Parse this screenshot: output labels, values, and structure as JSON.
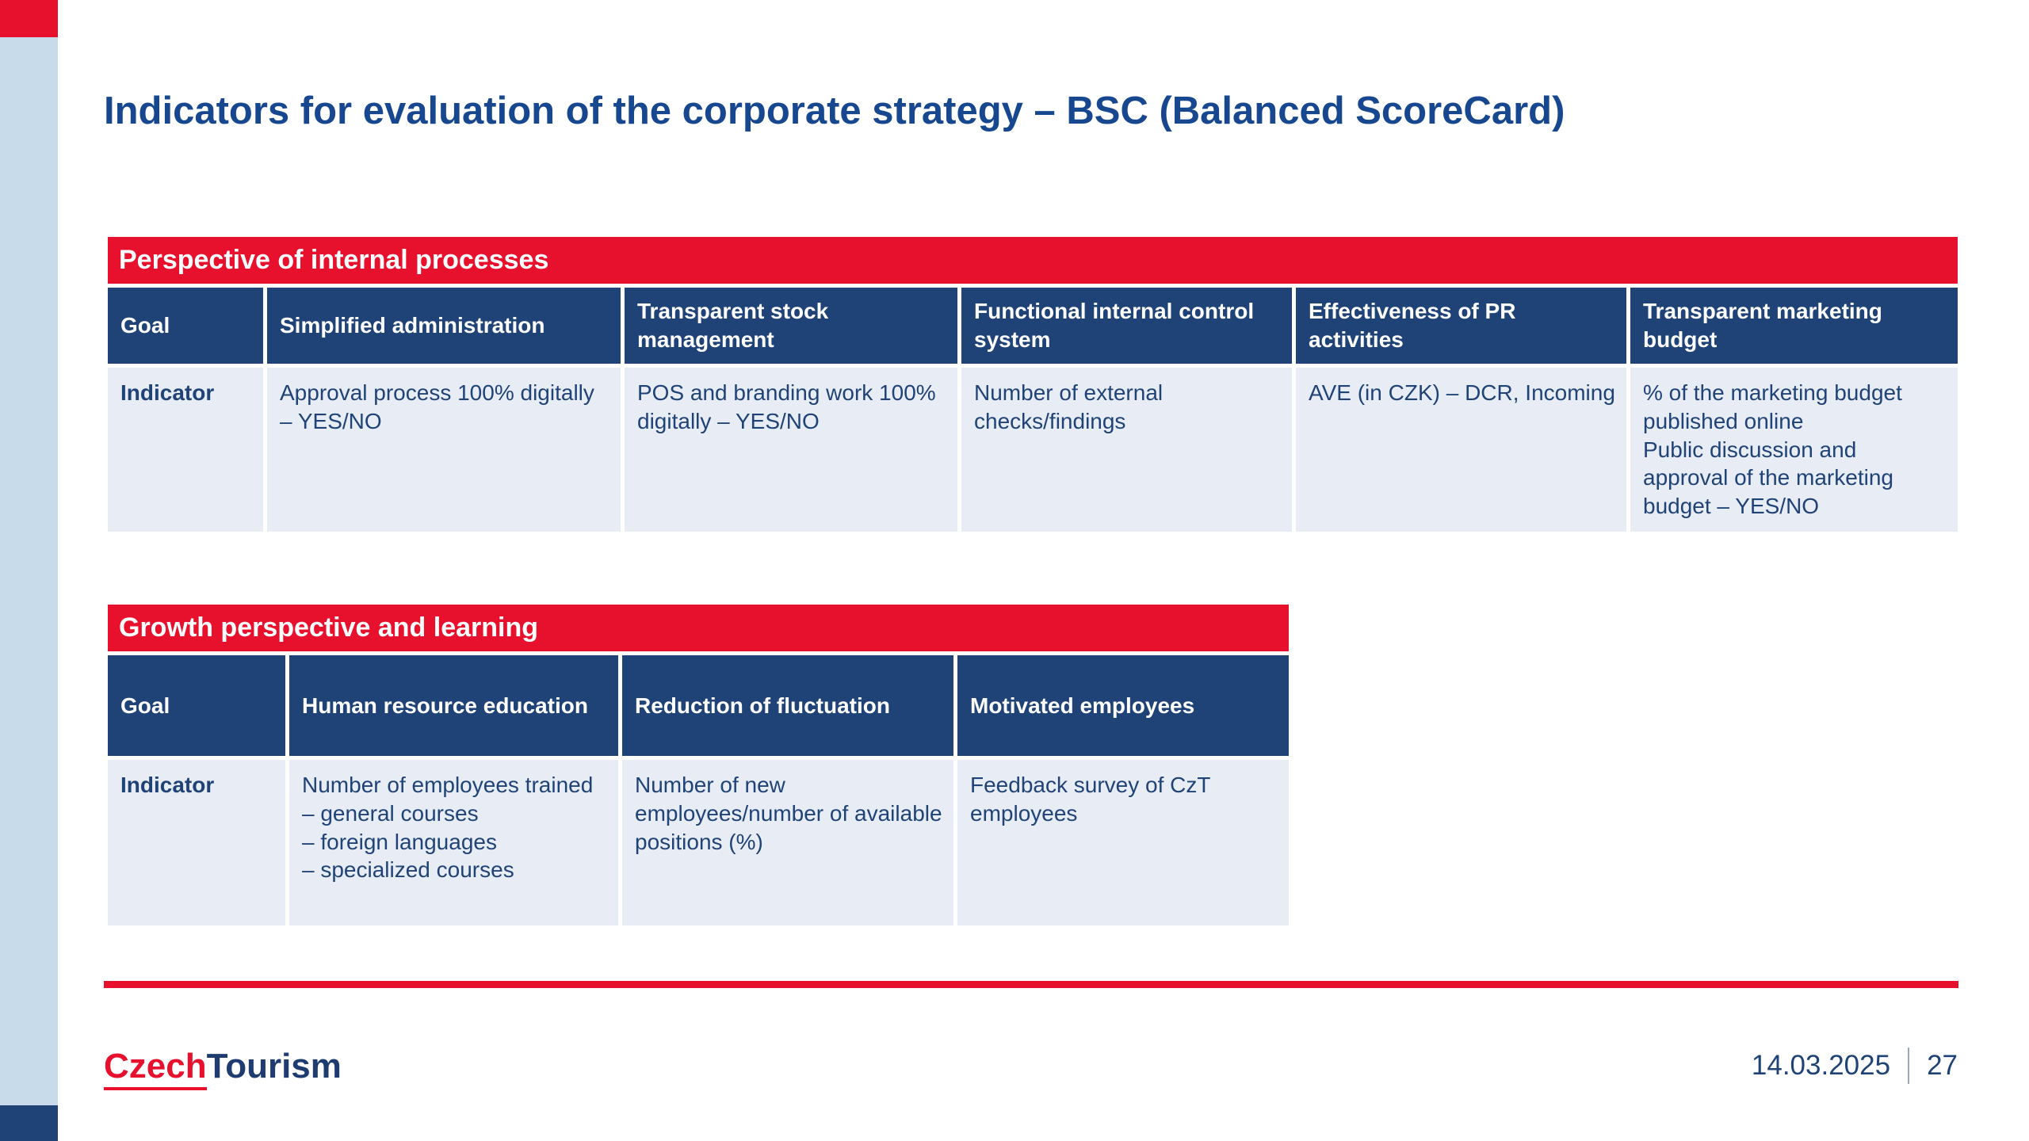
{
  "slide": {
    "title": "Indicators for evaluation of the corporate strategy – BSC (Balanced ScoreCard)"
  },
  "tables": [
    {
      "banner": "Perspective of internal processes",
      "goal_label": "Goal",
      "indicator_label": "Indicator",
      "columns": [
        {
          "goal": "Simplified administration",
          "indicator": "Approval process 100% digitally – YES/NO"
        },
        {
          "goal": "Transparent stock management",
          "indicator": "POS and branding work 100% digitally – YES/NO"
        },
        {
          "goal": "Functional internal control system",
          "indicator": "Number of external checks/findings"
        },
        {
          "goal": "Effectiveness of PR activities",
          "indicator": "AVE (in CZK) – DCR, Incoming"
        },
        {
          "goal": "Transparent marketing budget",
          "indicator": "% of the marketing budget published online\nPublic discussion and approval of the marketing budget – YES/NO"
        }
      ]
    },
    {
      "banner": "Growth perspective and learning",
      "goal_label": "Goal",
      "indicator_label": "Indicator",
      "columns": [
        {
          "goal": "Human resource education",
          "indicator": "Number of employees trained\n– general courses\n– foreign languages\n– specialized courses"
        },
        {
          "goal": "Reduction of fluctuation",
          "indicator": "Number of new employees/number of available positions (%)"
        },
        {
          "goal": "Motivated employees",
          "indicator": "Feedback survey of CzT employees"
        }
      ]
    }
  ],
  "footer": {
    "logo_czech": "Czech",
    "logo_tourism": "Tourism",
    "date": "14.03.2025",
    "page": "27"
  },
  "colors": {
    "brand_red": "#E8112D",
    "header_blue": "#1F4377",
    "title_blue": "#17478F",
    "row_bg": "#E8ECF4",
    "strip_blue": "#C7DBEB"
  }
}
